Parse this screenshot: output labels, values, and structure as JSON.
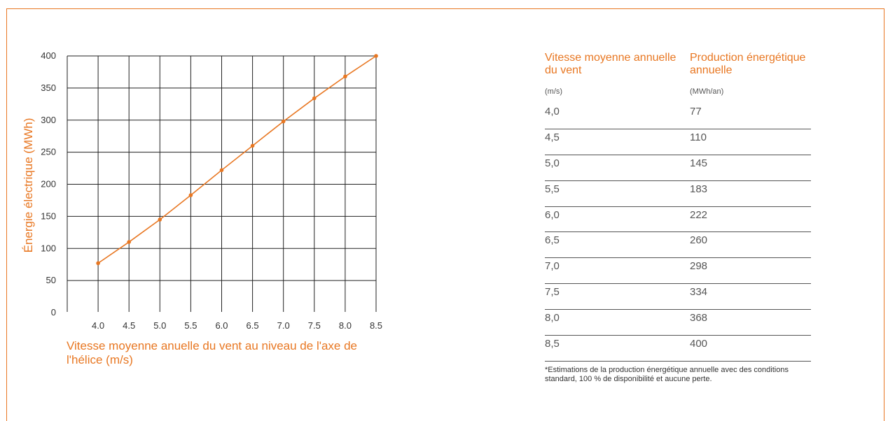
{
  "chart_data": {
    "type": "line",
    "title": "",
    "xlabel": "Vitesse moyenne anuelle du vent au niveau de l'axe de l'hélice (m/s)",
    "ylabel": "Énergie électrique (MWh)",
    "x": [
      4.0,
      4.5,
      5.0,
      5.5,
      6.0,
      6.5,
      7.0,
      7.5,
      8.0,
      8.5
    ],
    "x_tick_labels": [
      "4.0",
      "4.5",
      "5.0",
      "5.5",
      "6.0",
      "6.5",
      "7.0",
      "7.5",
      "8.0",
      "8.5"
    ],
    "y_ticks": [
      0,
      50,
      100,
      150,
      200,
      250,
      300,
      350,
      400
    ],
    "values": [
      77,
      110,
      145,
      183,
      222,
      260,
      298,
      334,
      368,
      400
    ],
    "xlim": [
      3.5,
      8.5
    ],
    "ylim": [
      0,
      400
    ],
    "grid": true,
    "line_color": "#e87722"
  },
  "table": {
    "col1_header": "Vitesse moyenne annuelle du vent",
    "col1_unit": "(m/s)",
    "col2_header": "Production énergétique annuelle",
    "col2_unit": "(MWh/an)",
    "rows": [
      {
        "speed": "4,0",
        "production": "77"
      },
      {
        "speed": "4,5",
        "production": "110"
      },
      {
        "speed": "5,0",
        "production": "145"
      },
      {
        "speed": "5,5",
        "production": "183"
      },
      {
        "speed": "6,0",
        "production": "222"
      },
      {
        "speed": "6,5",
        "production": "260"
      },
      {
        "speed": "7,0",
        "production": "298"
      },
      {
        "speed": "7,5",
        "production": "334"
      },
      {
        "speed": "8,0",
        "production": "368"
      },
      {
        "speed": "8,5",
        "production": "400"
      }
    ],
    "footnote": "*Estimations de la production énergétique annuelle avec des conditions standard, 100 % de disponibilité et aucune perte."
  },
  "colors": {
    "accent": "#e87722",
    "text": "#555555",
    "grid": "#222222"
  }
}
